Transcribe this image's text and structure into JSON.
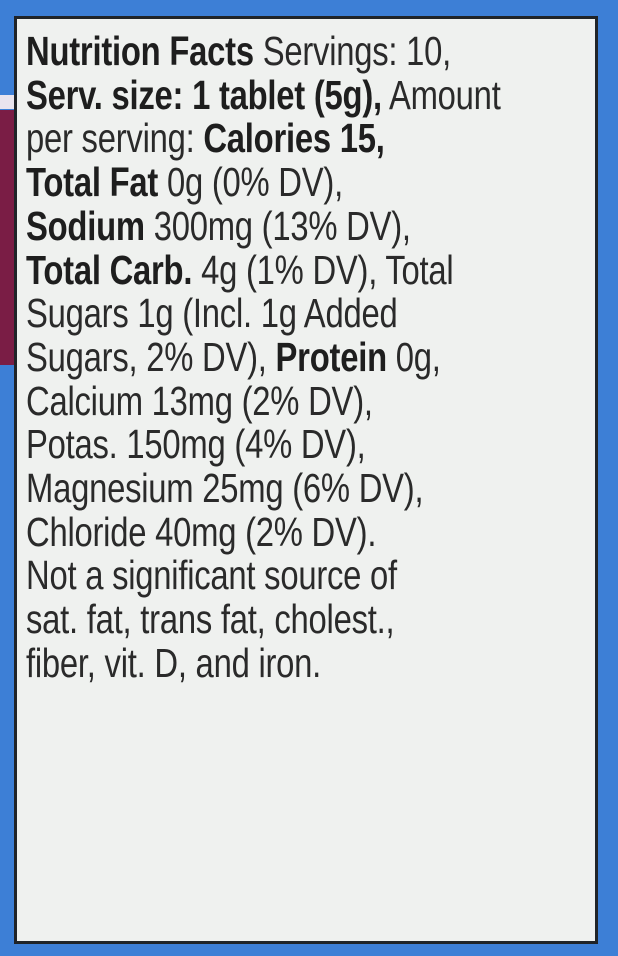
{
  "colors": {
    "background": "#3d7fd6",
    "label": "#eff1ef",
    "text": "#2a2a2a",
    "accent_strip": "#7a1d45"
  },
  "lines": [
    [
      {
        "t": "Nutrition Facts",
        "b": true
      },
      {
        "t": " Servings: 10,",
        "b": false
      }
    ],
    [
      {
        "t": "Serv. size: 1 tablet (5g),",
        "b": true
      },
      {
        "t": " Amount",
        "b": false
      }
    ],
    [
      {
        "t": "per serving: ",
        "b": false
      },
      {
        "t": "Calories 15,",
        "b": true
      }
    ],
    [
      {
        "t": "Total Fat",
        "b": true
      },
      {
        "t": " 0g (0% DV),",
        "b": false
      }
    ],
    [
      {
        "t": "Sodium",
        "b": true
      },
      {
        "t": " 300mg (13% DV),",
        "b": false
      }
    ],
    [
      {
        "t": "Total Carb.",
        "b": true
      },
      {
        "t": " 4g (1% DV), Total",
        "b": false
      }
    ],
    [
      {
        "t": "Sugars 1g (Incl. 1g Added",
        "b": false
      }
    ],
    [
      {
        "t": "Sugars, 2% DV), ",
        "b": false
      },
      {
        "t": "Protein",
        "b": true
      },
      {
        "t": " 0g,",
        "b": false
      }
    ],
    [
      {
        "t": "Calcium 13mg (2% DV),",
        "b": false
      }
    ],
    [
      {
        "t": "Potas. 150mg (4% DV),",
        "b": false
      }
    ],
    [
      {
        "t": "Magnesium 25mg (6% DV),",
        "b": false
      }
    ],
    [
      {
        "t": "Chloride 40mg (2% DV).",
        "b": false
      }
    ],
    [
      {
        "t": "Not a significant source of",
        "b": false
      }
    ],
    [
      {
        "t": "sat. fat, trans fat, cholest.,",
        "b": false
      }
    ],
    [
      {
        "t": "fiber, vit. D, and iron.",
        "b": false
      }
    ]
  ]
}
